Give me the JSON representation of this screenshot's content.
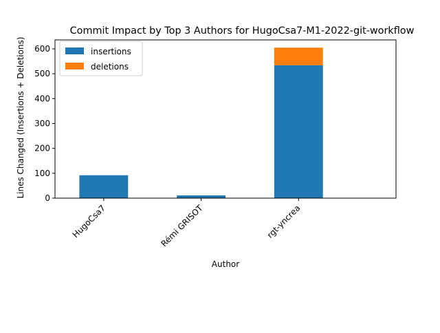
{
  "chart_data": {
    "type": "bar",
    "stacked": true,
    "title": "Commit Impact by Top 3 Authors for HugoCsa7-M1-2022-git-workflow",
    "xlabel": "Author",
    "ylabel": "Lines Changed (Insertions + Deletions)",
    "categories": [
      "HugoCsa7",
      "Rémi GRISOT",
      "rgt-yncrea"
    ],
    "series": [
      {
        "name": "insertions",
        "values": [
          92,
          11,
          534
        ],
        "color": "#1f77b4"
      },
      {
        "name": "deletions",
        "values": [
          0,
          0,
          71
        ],
        "color": "#ff7f0e"
      }
    ],
    "ylim": [
      0,
      636
    ],
    "yticks": [
      0,
      100,
      200,
      300,
      400,
      500,
      600
    ],
    "grid": false,
    "legend": "top-left"
  }
}
